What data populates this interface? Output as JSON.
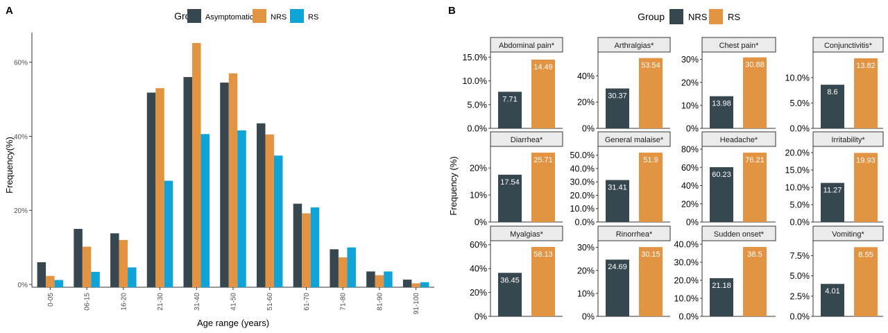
{
  "colors": {
    "asymptomatic": "#37474f",
    "nrs": "#37474f",
    "rs": "#e39443",
    "rs_blue": "#0fa3d8",
    "nrs_orange": "#e39443",
    "axis": "#333333",
    "strip_bg": "#ebebeb",
    "grid": "#e5e5e5"
  },
  "panel_a": {
    "label": "A",
    "legend": {
      "title": "Group",
      "items": [
        {
          "name": "Asymptomatic",
          "color_key": "asymptomatic"
        },
        {
          "name": "NRS",
          "color_key": "nrs_orange"
        },
        {
          "name": "RS",
          "color_key": "rs_blue"
        }
      ]
    }
  },
  "panel_b": {
    "label": "B",
    "ylabel": "Frequency (%)",
    "legend": {
      "title": "Group",
      "items": [
        {
          "name": "NRS",
          "color_key": "nrs"
        },
        {
          "name": "RS",
          "color_key": "rs"
        }
      ]
    }
  },
  "chart_data": [
    {
      "type": "bar",
      "xlabel": "Age range (years)",
      "ylabel": "Frequency(%)",
      "ylim": [
        0,
        68
      ],
      "yticks": [
        0,
        20,
        40,
        60
      ],
      "ytick_labels": [
        "0%",
        "20%",
        "40%",
        "60%"
      ],
      "grid": false,
      "legend_position": "top",
      "categories": [
        "0-05",
        "06-15",
        "16-20",
        "21-30",
        "31-40",
        "41-50",
        "51-60",
        "61-70",
        "71-80",
        "81-90",
        "91-100"
      ],
      "series": [
        {
          "name": "Asymptomatic",
          "values": [
            6.0,
            15.0,
            13.8,
            51.8,
            56.0,
            54.5,
            43.5,
            21.8,
            9.5,
            3.5,
            1.3
          ]
        },
        {
          "name": "NRS",
          "values": [
            2.3,
            10.2,
            12.0,
            53.0,
            65.2,
            57.0,
            40.5,
            19.2,
            7.3,
            2.5,
            0.3
          ]
        },
        {
          "name": "RS",
          "values": [
            1.2,
            3.4,
            4.6,
            28.0,
            40.6,
            41.6,
            34.8,
            20.8,
            10.0,
            3.5,
            0.6
          ]
        }
      ]
    },
    {
      "type": "bar",
      "ylabel": "Frequency (%)",
      "series_names": [
        "NRS",
        "RS"
      ],
      "legend_position": "top",
      "facets": [
        {
          "title": "Abdominal pain*",
          "values": [
            7.71,
            14.49
          ],
          "labels": [
            "7.71",
            "14.49"
          ],
          "ymax": 15.5,
          "ticks": [
            0,
            5,
            10,
            15
          ],
          "tick_labels": [
            "0.0%",
            "5.0%",
            "10.0%",
            "15.0%"
          ]
        },
        {
          "title": "Arthralgias*",
          "values": [
            30.37,
            53.54
          ],
          "labels": [
            "30.37",
            "53.54"
          ],
          "ymax": 56,
          "ticks": [
            0,
            20,
            40
          ],
          "tick_labels": [
            "0%",
            "20%",
            "40%"
          ]
        },
        {
          "title": "Chest pain*",
          "values": [
            13.98,
            30.88
          ],
          "labels": [
            "13.98",
            "30.88"
          ],
          "ymax": 32,
          "ticks": [
            0,
            10,
            20,
            30
          ],
          "tick_labels": [
            "0%",
            "10%",
            "20%",
            "30%"
          ]
        },
        {
          "title": "Conjunctivitis*",
          "values": [
            8.6,
            13.82
          ],
          "labels": [
            "8.6",
            "13.82"
          ],
          "ymax": 14.5,
          "ticks": [
            0,
            5,
            10
          ],
          "tick_labels": [
            "0.0%",
            "5.0%",
            "10.0%"
          ]
        },
        {
          "title": "Diarrhea*",
          "values": [
            17.54,
            25.71
          ],
          "labels": [
            "17.54",
            "25.71"
          ],
          "ymax": 27,
          "ticks": [
            0,
            10,
            20
          ],
          "tick_labels": [
            "0%",
            "10%",
            "20%"
          ]
        },
        {
          "title": "General malaise*",
          "values": [
            31.41,
            51.9
          ],
          "labels": [
            "31.41",
            "51.9"
          ],
          "ymax": 54.5,
          "ticks": [
            0,
            10,
            20,
            30,
            40,
            50
          ],
          "tick_labels": [
            "0.0%",
            "10.0%",
            "20.0%",
            "30.0%",
            "40.0%",
            "50.0%"
          ]
        },
        {
          "title": "Headache*",
          "values": [
            60.23,
            76.21
          ],
          "labels": [
            "60.23",
            "76.21"
          ],
          "ymax": 80,
          "ticks": [
            0,
            20,
            40,
            60,
            80
          ],
          "tick_labels": [
            "0%",
            "20%",
            "40%",
            "60%",
            "80%"
          ]
        },
        {
          "title": "Irritability*",
          "values": [
            11.27,
            19.93
          ],
          "labels": [
            "11.27",
            "19.93"
          ],
          "ymax": 21,
          "ticks": [
            0,
            5,
            10,
            15,
            20
          ],
          "tick_labels": [
            "0.0%",
            "5.0%",
            "10.0%",
            "15.0%",
            "20.0%"
          ]
        },
        {
          "title": "Myalgias*",
          "values": [
            36.45,
            58.13
          ],
          "labels": [
            "36.45",
            "58.13"
          ],
          "ymax": 61,
          "ticks": [
            0,
            20,
            40,
            60
          ],
          "tick_labels": [
            "0%",
            "20%",
            "40%",
            "60%"
          ]
        },
        {
          "title": "Rinorrhea*",
          "values": [
            24.69,
            30.15
          ],
          "labels": [
            "24.69",
            "30.15"
          ],
          "ymax": 31.7,
          "ticks": [
            0,
            10,
            20,
            30
          ],
          "tick_labels": [
            "0%",
            "10%",
            "20%",
            "30%"
          ]
        },
        {
          "title": "Sudden onset*",
          "values": [
            21.18,
            38.5
          ],
          "labels": [
            "21.18",
            "38.5"
          ],
          "ymax": 40.4,
          "ticks": [
            0,
            10,
            20,
            30,
            40
          ],
          "tick_labels": [
            "0.0%",
            "10.0%",
            "20.0%",
            "30.0%",
            "40.0%"
          ]
        },
        {
          "title": "Vomiting*",
          "values": [
            4.01,
            8.55
          ],
          "labels": [
            "4.01",
            "8.55"
          ],
          "ymax": 9.0,
          "ticks": [
            0,
            2.5,
            5,
            7.5
          ],
          "tick_labels": [
            "0.0%",
            "2.5%",
            "5.0%",
            "7.5%"
          ]
        }
      ]
    }
  ]
}
